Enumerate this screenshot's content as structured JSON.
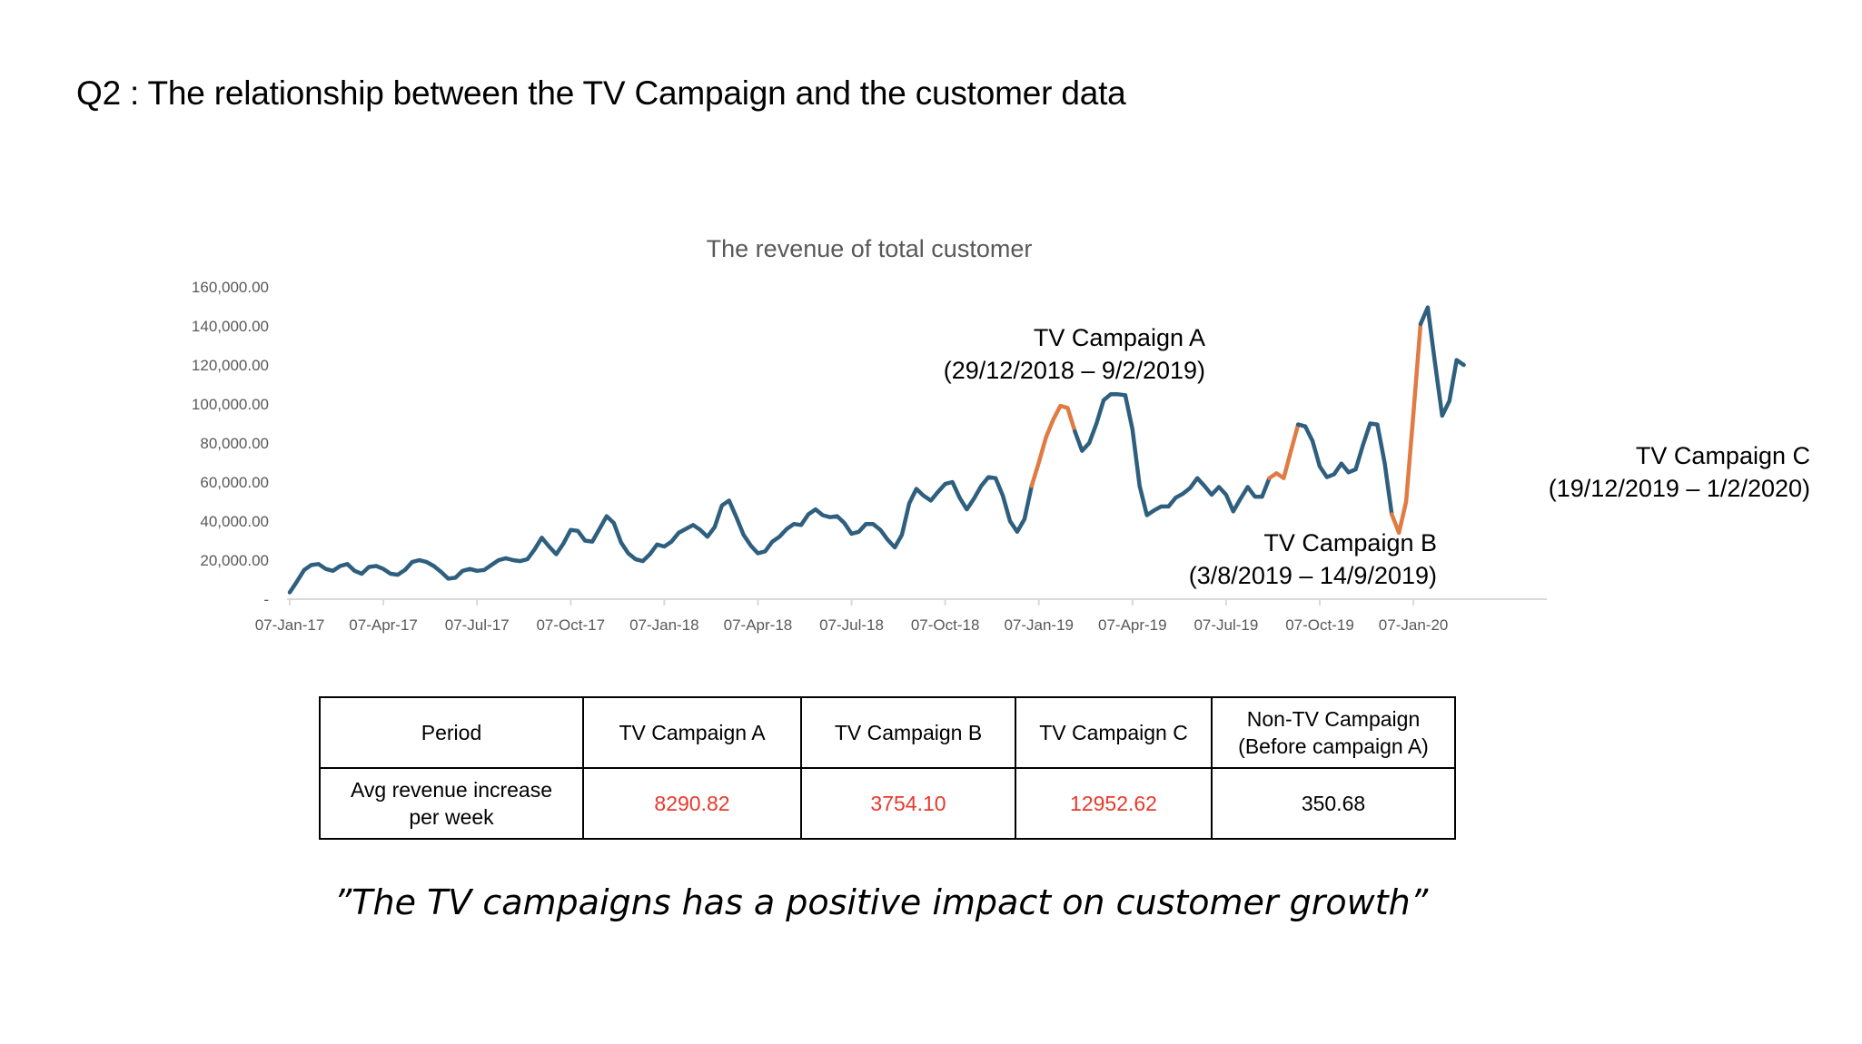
{
  "slide": {
    "title": "Q2 : The relationship between the TV Campaign and the customer data",
    "quote": "”The TV campaigns has a positive impact on customer growth”"
  },
  "colors": {
    "series": "#2f5f7f",
    "campaign": "#e07b43",
    "highlight_text": "#e8392b",
    "axis_text": "#595959"
  },
  "chart_data": {
    "type": "line",
    "title": "The revenue of total customer",
    "xlabel": "",
    "ylabel": "",
    "ylim": [
      0,
      160000
    ],
    "y_ticks": [
      "-",
      "20,000.00",
      "40,000.00",
      "60,000.00",
      "80,000.00",
      "100,000.00",
      "120,000.00",
      "140,000.00",
      "160,000.00"
    ],
    "x_ticks": [
      "07-Jan-17",
      "07-Apr-17",
      "07-Jul-17",
      "07-Oct-17",
      "07-Jan-18",
      "07-Apr-18",
      "07-Jul-18",
      "07-Oct-18",
      "07-Jan-19",
      "07-Apr-19",
      "07-Jul-19",
      "07-Oct-19",
      "07-Jan-20"
    ],
    "x_start": "2017-01-07",
    "x_interval": "1 week",
    "grid": false,
    "series": [
      {
        "values": [
          3500,
          9000,
          15000,
          17500,
          18000,
          15500,
          14500,
          17000,
          18000,
          14500,
          13000,
          16500,
          17000,
          15500,
          13000,
          12500,
          15000,
          19000,
          20000,
          19000,
          17000,
          14000,
          10500,
          11000,
          14500,
          15500,
          14500,
          15000,
          17500,
          20000,
          21000,
          20000,
          19500,
          20500,
          25500,
          31500,
          27000,
          23000,
          28500,
          35500,
          35000,
          30000,
          29500,
          36000,
          42500,
          39000,
          29000,
          23500,
          20500,
          19500,
          23000,
          28000,
          27000,
          29500,
          34000,
          36000,
          38000,
          35500,
          32000,
          37000,
          48000,
          50500,
          42000,
          33000,
          27500,
          23500,
          24500,
          29500,
          32000,
          36000,
          38500,
          38000,
          43500,
          46000,
          43000,
          42000,
          42500,
          39000,
          33500,
          34500,
          38500,
          38500,
          35500,
          30500,
          26500,
          33000,
          49000,
          56500,
          53000,
          50500,
          55000,
          59000,
          60000,
          52000,
          46000,
          51500,
          58000,
          62500,
          62000,
          53000,
          40000,
          34500,
          41000,
          58000,
          70000,
          83000,
          92000,
          99000,
          98000,
          86000,
          76000,
          80000,
          90000,
          102000,
          105000,
          105000,
          104500,
          87000,
          58000,
          43000,
          45500,
          47500,
          47500,
          52000,
          54000,
          57000,
          62000,
          58000,
          53500,
          57500,
          53500,
          45000,
          51500,
          57500,
          52500,
          52500,
          62000,
          64500,
          62000,
          76000,
          89500,
          88500,
          81000,
          68000,
          62500,
          64000,
          69500,
          65000,
          66500,
          79000,
          90000,
          89500,
          70000,
          43500,
          34000,
          50000,
          95000,
          141000,
          149500,
          121000,
          94000,
          101500,
          122500,
          120000
        ],
        "campaign_ranges": [
          [
            103,
            109
          ],
          [
            136,
            140
          ],
          [
            153,
            157
          ]
        ]
      }
    ],
    "annotations": [
      {
        "title": "TV Campaign A",
        "dates": "(29/12/2018 – 9/2/2019)"
      },
      {
        "title": "TV Campaign B",
        "dates": "(3/8/2019 – 14/9/2019)"
      },
      {
        "title": "TV Campaign C",
        "dates": "(19/12/2019 – 1/2/2020)"
      }
    ]
  },
  "table": {
    "header": [
      "Period",
      "TV Campaign A",
      "TV Campaign B",
      "TV Campaign C",
      "Non-TV Campaign\n(Before campaign A)"
    ],
    "row_label": "Avg revenue increase\nper week",
    "values": [
      "8290.82",
      "3754.10",
      "12952.62",
      "350.68"
    ]
  }
}
